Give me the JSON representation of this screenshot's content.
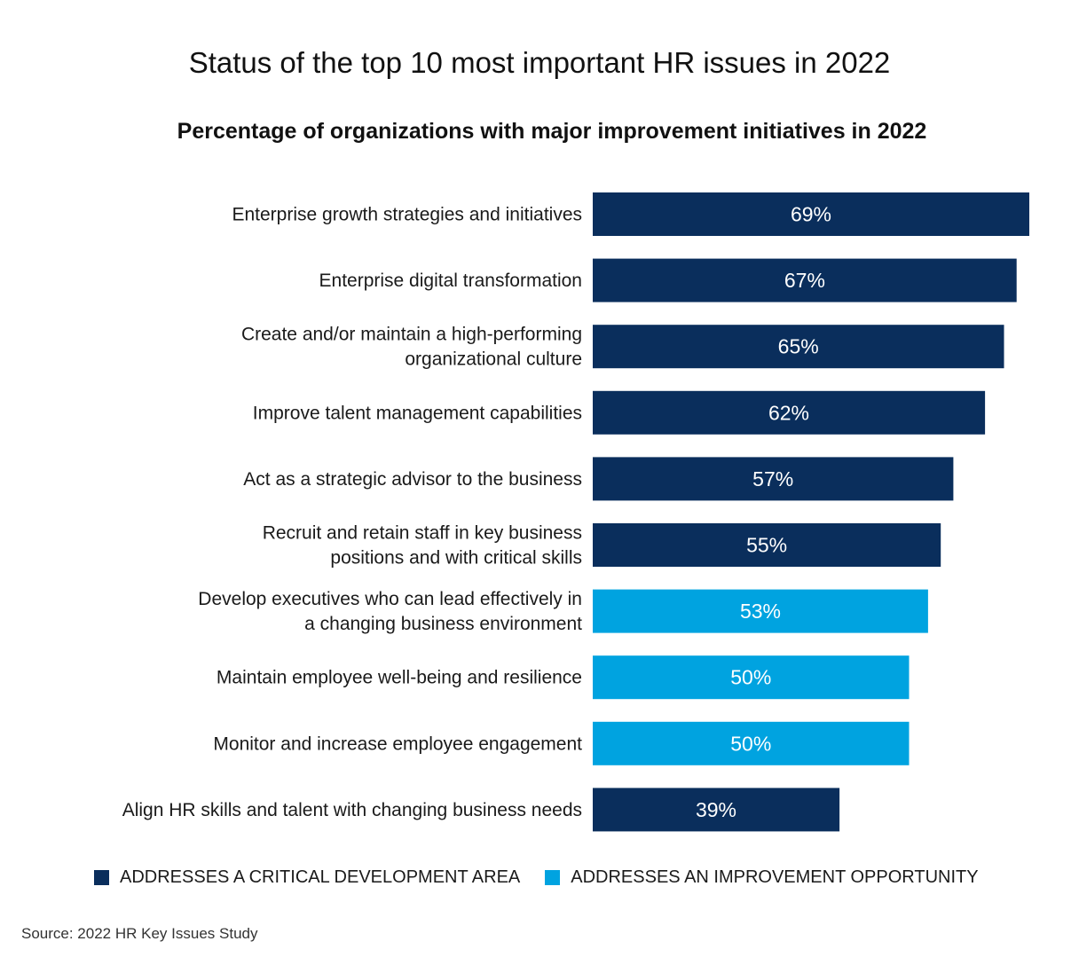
{
  "chart_data": {
    "type": "bar",
    "orientation": "horizontal",
    "title": "Status of the top 10 most important HR issues in 2022",
    "subtitle": "Percentage of organizations with major improvement initiatives in 2022",
    "categories": [
      [
        "Enterprise growth strategies and initiatives"
      ],
      [
        "Enterprise digital transformation"
      ],
      [
        "Create and/or maintain a high-performing",
        "organizational culture"
      ],
      [
        "Improve talent management capabilities"
      ],
      [
        "Act as a strategic advisor to the business"
      ],
      [
        "Recruit and retain staff in key business",
        "positions and with critical skills"
      ],
      [
        "Develop executives who can lead effectively in",
        "a changing business environment"
      ],
      [
        "Maintain employee well-being and resilience"
      ],
      [
        "Monitor and increase employee engagement"
      ],
      [
        "Align HR skills and talent with changing business needs"
      ]
    ],
    "values": [
      69,
      67,
      65,
      62,
      57,
      55,
      53,
      50,
      50,
      39
    ],
    "value_labels": [
      "69%",
      "67%",
      "65%",
      "62%",
      "57%",
      "55%",
      "53%",
      "50%",
      "50%",
      "39%"
    ],
    "groups": [
      "critical",
      "critical",
      "critical",
      "critical",
      "critical",
      "critical",
      "improvement",
      "improvement",
      "improvement",
      "critical"
    ],
    "legend": [
      {
        "key": "critical",
        "label": "ADDRESSES A CRITICAL DEVELOPMENT AREA",
        "color": "#0a2e5c"
      },
      {
        "key": "improvement",
        "label": "ADDRESSES AN IMPROVEMENT OPPORTUNITY",
        "color": "#00a3e0"
      }
    ],
    "legend_position": "bottom",
    "xlim": [
      0,
      69
    ],
    "grid": false
  },
  "source": "Source: 2022 HR Key Issues Study"
}
